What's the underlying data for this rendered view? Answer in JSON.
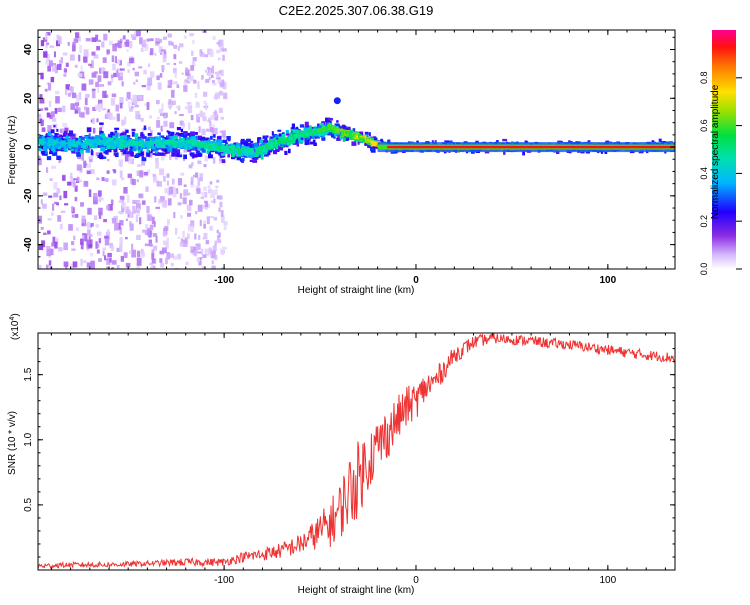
{
  "figure_title": "C2E2.2025.307.06.38.G19",
  "chart_data": [
    {
      "type": "heatmap",
      "title": "C2E2.2025.307.06.38.G19",
      "xlabel": "Height of straight line (km)",
      "ylabel": "Frequency (Hz)",
      "xlim": [
        -197,
        135
      ],
      "ylim": [
        -50,
        48
      ],
      "x_ticks": [
        -100,
        0,
        100
      ],
      "x_tick_labels": [
        "-100",
        "0",
        "100"
      ],
      "y_ticks": [
        -40,
        -20,
        0,
        20,
        40
      ],
      "y_tick_labels": [
        "-40",
        "-20",
        "0",
        "20",
        "40"
      ],
      "colorbar": {
        "label": "Normalized spectral amplitude",
        "range": [
          0,
          1
        ],
        "ticks": [
          0,
          0.2,
          0.4,
          0.6,
          0.8
        ],
        "tick_labels": [
          "0.0",
          "0.2",
          "0.4",
          "0.6",
          "0.8"
        ],
        "colors": [
          "#ffffff",
          "#c9a7ff",
          "#8a2be2",
          "#1e00ff",
          "#00c8ff",
          "#00e060",
          "#7ee000",
          "#ffe000",
          "#ff8000",
          "#ff0000",
          "#ff0090"
        ]
      },
      "ridge": {
        "description_free": true,
        "x": [
          -197,
          -180,
          -160,
          -140,
          -120,
          -100,
          -85,
          -70,
          -60,
          -50,
          -45,
          -40,
          -35,
          -30,
          -25,
          -20,
          -15,
          -10,
          -5,
          0,
          10,
          20,
          40,
          60,
          80,
          100,
          120,
          135
        ],
        "freq": [
          2,
          1,
          2,
          1,
          2,
          -1,
          -2,
          3,
          5,
          7,
          8,
          6,
          5,
          4,
          2,
          1,
          0,
          0,
          0,
          0,
          0,
          0,
          0,
          0,
          0,
          0,
          0,
          0
        ],
        "peak_amplitude": [
          0.45,
          0.45,
          0.5,
          0.5,
          0.5,
          0.55,
          0.55,
          0.6,
          0.6,
          0.6,
          0.65,
          0.7,
          0.7,
          0.75,
          0.8,
          0.85,
          0.9,
          0.9,
          0.9,
          0.92,
          0.95,
          0.95,
          0.95,
          0.95,
          0.95,
          0.95,
          0.95,
          0.95
        ],
        "spread_hz": [
          6,
          6,
          6,
          6,
          6,
          5,
          5,
          5,
          5,
          5,
          4,
          4,
          3,
          3,
          3,
          2,
          2,
          2,
          2,
          2,
          2,
          2,
          2,
          2,
          2,
          2,
          2,
          2
        ]
      },
      "scatter_noise_range_x": [
        -197,
        -100
      ]
    },
    {
      "type": "line",
      "xlabel": "Height of straight line (km)",
      "ylabel": "SNR (10 * v/v)",
      "scale_note": "(x10",
      "scale_exponent": "4",
      "xlim": [
        -197,
        135
      ],
      "ylim": [
        0,
        1.82
      ],
      "x_ticks": [
        -100,
        0,
        100
      ],
      "x_tick_labels": [
        "-100",
        "0",
        "100"
      ],
      "y_ticks": [
        0.5,
        1.0,
        1.5
      ],
      "y_tick_labels": [
        "0.5",
        "1.0",
        "1.5"
      ],
      "series": [
        {
          "name": "SNR",
          "color": "#ee3333",
          "x": [
            -197,
            -180,
            -160,
            -140,
            -120,
            -100,
            -90,
            -80,
            -70,
            -60,
            -55,
            -50,
            -45,
            -40,
            -35,
            -30,
            -25,
            -20,
            -15,
            -10,
            -5,
            0,
            5,
            10,
            15,
            20,
            30,
            40,
            50,
            60,
            70,
            80,
            90,
            100,
            110,
            120,
            135
          ],
          "y": [
            0.03,
            0.04,
            0.04,
            0.05,
            0.06,
            0.06,
            0.1,
            0.12,
            0.15,
            0.2,
            0.25,
            0.3,
            0.35,
            0.45,
            0.6,
            0.7,
            0.85,
            0.95,
            1.05,
            1.15,
            1.25,
            1.3,
            1.4,
            1.45,
            1.55,
            1.65,
            1.75,
            1.78,
            1.77,
            1.76,
            1.74,
            1.73,
            1.71,
            1.69,
            1.67,
            1.65,
            1.63
          ],
          "noise_amplitude": [
            0.02,
            0.02,
            0.02,
            0.02,
            0.03,
            0.03,
            0.04,
            0.05,
            0.06,
            0.08,
            0.1,
            0.14,
            0.18,
            0.22,
            0.28,
            0.3,
            0.25,
            0.22,
            0.2,
            0.18,
            0.16,
            0.14,
            0.12,
            0.1,
            0.08,
            0.07,
            0.05,
            0.04,
            0.04,
            0.04,
            0.04,
            0.04,
            0.04,
            0.04,
            0.04,
            0.04,
            0.04
          ]
        }
      ]
    }
  ]
}
